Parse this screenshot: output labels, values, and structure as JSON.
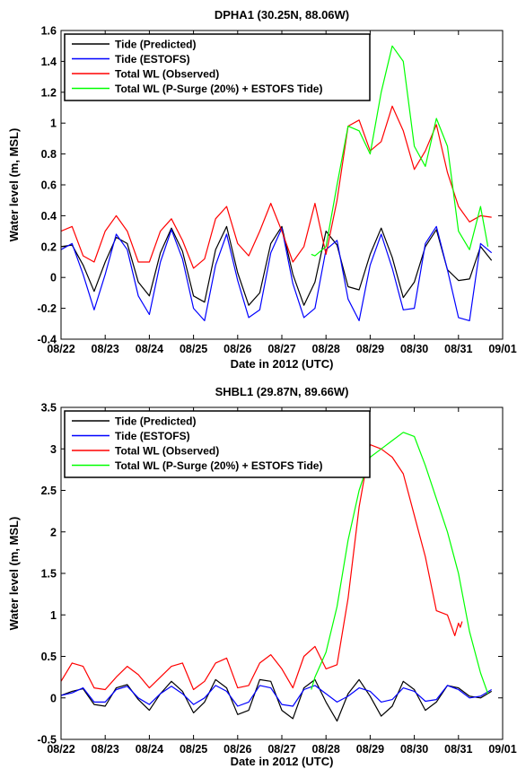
{
  "chart_data": [
    {
      "type": "line",
      "title": "DPHA1 (30.25N, 88.06W)",
      "xlabel": "Date in 2012 (UTC)",
      "ylabel": "Water level (m, MSL)",
      "xlim": [
        "08/22",
        "09/01"
      ],
      "ylim": [
        -0.4,
        1.6
      ],
      "xticks": [
        "08/22",
        "08/23",
        "08/24",
        "08/25",
        "08/26",
        "08/27",
        "08/28",
        "08/29",
        "08/30",
        "08/31",
        "09/01"
      ],
      "yticks": [
        "-0.4",
        "-0.2",
        "0",
        "0.2",
        "0.4",
        "0.6",
        "0.8",
        "1",
        "1.2",
        "1.4",
        "1.6"
      ],
      "legend_position": "top-left",
      "series": [
        {
          "name": "Tide (Predicted)",
          "color": "#000000",
          "x": [
            "08/22 00:00",
            "08/22 06:00",
            "08/22 12:00",
            "08/22 18:00",
            "08/23 00:00",
            "08/23 06:00",
            "08/23 12:00",
            "08/23 18:00",
            "08/24 00:00",
            "08/24 06:00",
            "08/24 12:00",
            "08/24 18:00",
            "08/25 00:00",
            "08/25 06:00",
            "08/25 12:00",
            "08/25 18:00",
            "08/26 00:00",
            "08/26 06:00",
            "08/26 12:00",
            "08/26 18:00",
            "08/27 00:00",
            "08/27 06:00",
            "08/27 12:00",
            "08/27 18:00",
            "08/28 00:00",
            "08/28 06:00",
            "08/28 12:00",
            "08/28 18:00",
            "08/29 00:00",
            "08/29 06:00",
            "08/29 12:00",
            "08/29 18:00",
            "08/30 00:00",
            "08/30 06:00",
            "08/30 12:00",
            "08/30 18:00",
            "08/31 00:00",
            "08/31 06:00",
            "08/31 12:00",
            "08/31 18:00"
          ],
          "y": [
            0.2,
            0.21,
            0.08,
            -0.09,
            0.1,
            0.26,
            0.22,
            -0.03,
            -0.12,
            0.16,
            0.32,
            0.17,
            -0.12,
            -0.16,
            0.18,
            0.33,
            0.03,
            -0.18,
            -0.1,
            0.22,
            0.33,
            0.02,
            -0.18,
            -0.03,
            0.3,
            0.21,
            -0.06,
            -0.08,
            0.15,
            0.32,
            0.13,
            -0.13,
            -0.03,
            0.2,
            0.31,
            0.05,
            -0.02,
            -0.01,
            0.2,
            0.11
          ]
        },
        {
          "name": "Tide (ESTOFS)",
          "color": "#0000ff",
          "x": [
            "08/22 00:00",
            "08/22 06:00",
            "08/22 12:00",
            "08/22 18:00",
            "08/23 00:00",
            "08/23 06:00",
            "08/23 12:00",
            "08/23 18:00",
            "08/24 00:00",
            "08/24 06:00",
            "08/24 12:00",
            "08/24 18:00",
            "08/25 00:00",
            "08/25 06:00",
            "08/25 12:00",
            "08/25 18:00",
            "08/26 00:00",
            "08/26 06:00",
            "08/26 12:00",
            "08/26 18:00",
            "08/27 00:00",
            "08/27 06:00",
            "08/27 12:00",
            "08/27 18:00",
            "08/28 00:00",
            "08/28 06:00",
            "08/28 12:00",
            "08/28 18:00",
            "08/29 00:00",
            "08/29 06:00",
            "08/29 12:00",
            "08/29 18:00",
            "08/30 00:00",
            "08/30 06:00",
            "08/30 12:00",
            "08/30 18:00",
            "08/31 00:00",
            "08/31 06:00",
            "08/31 12:00",
            "08/31 18:00"
          ],
          "y": [
            0.18,
            0.22,
            0.02,
            -0.21,
            0.02,
            0.28,
            0.18,
            -0.12,
            -0.24,
            0.1,
            0.31,
            0.12,
            -0.2,
            -0.28,
            0.08,
            0.28,
            -0.02,
            -0.26,
            -0.21,
            0.16,
            0.32,
            -0.04,
            -0.26,
            -0.2,
            0.18,
            0.24,
            -0.14,
            -0.28,
            0.08,
            0.28,
            0.06,
            -0.21,
            -0.2,
            0.22,
            0.33,
            0.05,
            -0.26,
            -0.28,
            0.22,
            0.16
          ]
        },
        {
          "name": "Total WL (Observed)",
          "color": "#ff0000",
          "x": [
            "08/22 00:00",
            "08/22 06:00",
            "08/22 12:00",
            "08/22 18:00",
            "08/23 00:00",
            "08/23 06:00",
            "08/23 12:00",
            "08/23 18:00",
            "08/24 00:00",
            "08/24 06:00",
            "08/24 12:00",
            "08/24 18:00",
            "08/25 00:00",
            "08/25 06:00",
            "08/25 12:00",
            "08/25 18:00",
            "08/26 00:00",
            "08/26 06:00",
            "08/26 12:00",
            "08/26 18:00",
            "08/27 00:00",
            "08/27 06:00",
            "08/27 12:00",
            "08/27 18:00",
            "08/28 00:00",
            "08/28 06:00",
            "08/28 12:00",
            "08/28 18:00",
            "08/29 00:00",
            "08/29 06:00",
            "08/29 12:00",
            "08/29 18:00",
            "08/30 00:00",
            "08/30 06:00",
            "08/30 12:00",
            "08/30 18:00",
            "08/31 00:00",
            "08/31 06:00",
            "08/31 12:00",
            "08/31 18:00"
          ],
          "y": [
            0.3,
            0.33,
            0.14,
            0.1,
            0.3,
            0.4,
            0.3,
            0.1,
            0.1,
            0.3,
            0.38,
            0.24,
            0.06,
            0.12,
            0.38,
            0.46,
            0.22,
            0.14,
            0.3,
            0.48,
            0.3,
            0.1,
            0.2,
            0.48,
            0.15,
            0.5,
            0.98,
            1.02,
            0.82,
            0.88,
            1.11,
            0.95,
            0.7,
            0.82,
            0.99,
            0.68,
            0.46,
            0.36,
            0.4,
            0.39
          ]
        },
        {
          "name": "Total WL (P-Surge (20%) + ESTOFS Tide)",
          "color": "#00ff00",
          "x": [
            "08/27 16:00",
            "08/27 18:00",
            "08/28 00:00",
            "08/28 06:00",
            "08/28 12:00",
            "08/28 18:00",
            "08/29 00:00",
            "08/29 06:00",
            "08/29 12:00",
            "08/29 18:00",
            "08/30 00:00",
            "08/30 06:00",
            "08/30 12:00",
            "08/30 18:00",
            "08/31 00:00",
            "08/31 06:00",
            "08/31 12:00",
            "08/31 16:00"
          ],
          "y": [
            0.15,
            0.14,
            0.2,
            0.6,
            0.98,
            0.95,
            0.8,
            1.2,
            1.5,
            1.4,
            0.85,
            0.72,
            1.03,
            0.85,
            0.3,
            0.18,
            0.46,
            0.2
          ]
        }
      ]
    },
    {
      "type": "line",
      "title": "SHBL1 (29.87N, 89.66W)",
      "xlabel": "Date in 2012 (UTC)",
      "ylabel": "Water level (m, MSL)",
      "xlim": [
        "08/22",
        "09/01"
      ],
      "ylim": [
        -0.5,
        3.5
      ],
      "xticks": [
        "08/22",
        "08/23",
        "08/24",
        "08/25",
        "08/26",
        "08/27",
        "08/28",
        "08/29",
        "08/30",
        "08/31",
        "09/01"
      ],
      "yticks": [
        "-0.5",
        "0",
        "0.5",
        "1",
        "1.5",
        "2",
        "2.5",
        "3",
        "3.5"
      ],
      "legend_position": "top-left",
      "series": [
        {
          "name": "Tide (Predicted)",
          "color": "#000000",
          "x": [
            "08/22 00:00",
            "08/22 06:00",
            "08/22 12:00",
            "08/22 18:00",
            "08/23 00:00",
            "08/23 06:00",
            "08/23 12:00",
            "08/23 18:00",
            "08/24 00:00",
            "08/24 06:00",
            "08/24 12:00",
            "08/24 18:00",
            "08/25 00:00",
            "08/25 06:00",
            "08/25 12:00",
            "08/25 18:00",
            "08/26 00:00",
            "08/26 06:00",
            "08/26 12:00",
            "08/26 18:00",
            "08/27 00:00",
            "08/27 06:00",
            "08/27 12:00",
            "08/27 18:00",
            "08/28 00:00",
            "08/28 06:00",
            "08/28 12:00",
            "08/28 18:00",
            "08/29 00:00",
            "08/29 06:00",
            "08/29 12:00",
            "08/29 18:00",
            "08/30 00:00",
            "08/30 06:00",
            "08/30 12:00",
            "08/30 18:00",
            "08/31 00:00",
            "08/31 06:00",
            "08/31 12:00",
            "08/31 18:00"
          ],
          "y": [
            0.03,
            0.08,
            0.11,
            -0.08,
            -0.1,
            0.12,
            0.16,
            -0.02,
            -0.15,
            0.05,
            0.2,
            0.08,
            -0.18,
            -0.05,
            0.22,
            0.12,
            -0.2,
            -0.15,
            0.22,
            0.2,
            -0.15,
            -0.25,
            0.12,
            0.22,
            -0.05,
            -0.28,
            0.05,
            0.22,
            0.02,
            -0.22,
            -0.1,
            0.2,
            0.1,
            -0.15,
            -0.05,
            0.15,
            0.12,
            0.02,
            0.0,
            0.08
          ]
        },
        {
          "name": "Tide (ESTOFS)",
          "color": "#0000ff",
          "x": [
            "08/22 00:00",
            "08/22 06:00",
            "08/22 12:00",
            "08/22 18:00",
            "08/23 00:00",
            "08/23 06:00",
            "08/23 12:00",
            "08/23 18:00",
            "08/24 00:00",
            "08/24 06:00",
            "08/24 12:00",
            "08/24 18:00",
            "08/25 00:00",
            "08/25 06:00",
            "08/25 12:00",
            "08/25 18:00",
            "08/26 00:00",
            "08/26 06:00",
            "08/26 12:00",
            "08/26 18:00",
            "08/27 00:00",
            "08/27 06:00",
            "08/27 12:00",
            "08/27 18:00",
            "08/28 00:00",
            "08/28 06:00",
            "08/28 12:00",
            "08/28 18:00",
            "08/29 00:00",
            "08/29 06:00",
            "08/29 12:00",
            "08/29 18:00",
            "08/30 00:00",
            "08/30 06:00",
            "08/30 12:00",
            "08/30 18:00",
            "08/31 00:00",
            "08/31 06:00",
            "08/31 12:00",
            "08/31 18:00"
          ],
          "y": [
            0.03,
            0.06,
            0.12,
            -0.05,
            -0.05,
            0.1,
            0.14,
            0.0,
            -0.08,
            0.05,
            0.14,
            0.05,
            -0.08,
            0.0,
            0.15,
            0.08,
            -0.1,
            -0.05,
            0.15,
            0.12,
            -0.08,
            -0.1,
            0.1,
            0.15,
            0.05,
            -0.05,
            0.02,
            0.12,
            0.08,
            -0.05,
            -0.02,
            0.12,
            0.08,
            -0.04,
            -0.02,
            0.15,
            0.1,
            0.0,
            0.02,
            0.1
          ]
        },
        {
          "name": "Total WL (Observed)",
          "color": "#ff0000",
          "x": [
            "08/22 00:00",
            "08/22 06:00",
            "08/22 12:00",
            "08/22 18:00",
            "08/23 00:00",
            "08/23 06:00",
            "08/23 12:00",
            "08/23 18:00",
            "08/24 00:00",
            "08/24 06:00",
            "08/24 12:00",
            "08/24 18:00",
            "08/25 00:00",
            "08/25 06:00",
            "08/25 12:00",
            "08/25 18:00",
            "08/26 00:00",
            "08/26 06:00",
            "08/26 12:00",
            "08/26 18:00",
            "08/27 00:00",
            "08/27 06:00",
            "08/27 12:00",
            "08/27 18:00",
            "08/28 00:00",
            "08/28 06:00",
            "08/28 12:00",
            "08/28 18:00",
            "08/29 00:00",
            "08/29 06:00",
            "08/29 12:00",
            "08/29 18:00",
            "08/30 00:00",
            "08/30 06:00",
            "08/30 12:00",
            "08/30 18:00",
            "08/30 22:00",
            "08/31 00:00",
            "08/31 01:00",
            "08/31 02:00"
          ],
          "y": [
            0.2,
            0.42,
            0.38,
            0.12,
            0.1,
            0.25,
            0.38,
            0.28,
            0.12,
            0.25,
            0.38,
            0.42,
            0.1,
            0.2,
            0.42,
            0.48,
            0.12,
            0.15,
            0.42,
            0.52,
            0.35,
            0.12,
            0.5,
            0.62,
            0.35,
            0.4,
            1.2,
            2.3,
            3.05,
            3.0,
            2.9,
            2.7,
            2.2,
            1.7,
            1.05,
            1.0,
            0.75,
            0.9,
            0.85,
            0.92
          ]
        },
        {
          "name": "Total WL (P-Surge (20%) + ESTOFS Tide)",
          "color": "#00ff00",
          "x": [
            "08/27 16:00",
            "08/27 18:00",
            "08/28 00:00",
            "08/28 06:00",
            "08/28 12:00",
            "08/28 18:00",
            "08/29 00:00",
            "08/29 06:00",
            "08/29 12:00",
            "08/29 18:00",
            "08/30 00:00",
            "08/30 06:00",
            "08/30 12:00",
            "08/30 18:00",
            "08/31 00:00",
            "08/31 06:00",
            "08/31 12:00",
            "08/31 16:00"
          ],
          "y": [
            0.1,
            0.25,
            0.55,
            1.1,
            1.9,
            2.5,
            2.9,
            3.0,
            3.1,
            3.2,
            3.15,
            2.8,
            2.4,
            2.0,
            1.5,
            0.8,
            0.3,
            0.05
          ]
        }
      ]
    }
  ]
}
